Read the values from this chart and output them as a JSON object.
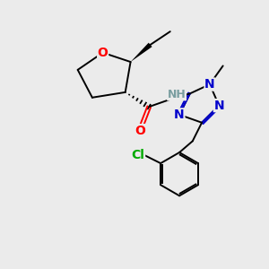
{
  "bg_color": "#ebebeb",
  "atom_colors": {
    "O": "#ff0000",
    "N": "#0000cc",
    "Cl": "#00aa00",
    "C": "#000000",
    "H": "#7a9ea0"
  },
  "bond_color": "#000000",
  "font_size_atom": 10,
  "font_size_small": 8,
  "lw": 1.4
}
